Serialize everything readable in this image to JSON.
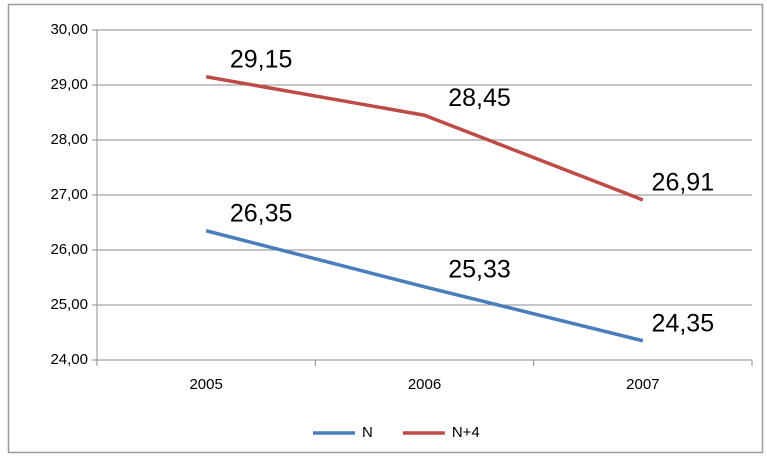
{
  "chart_data": {
    "type": "line",
    "categories": [
      "2005",
      "2006",
      "2007"
    ],
    "series": [
      {
        "name": "N",
        "color": "#4a7ebb",
        "values": [
          26.35,
          25.33,
          24.35
        ],
        "value_labels": [
          "26,35",
          "25,33",
          "24,35"
        ]
      },
      {
        "name": "N+4",
        "color": "#be4b48",
        "values": [
          29.15,
          28.45,
          26.91
        ],
        "value_labels": [
          "29,15",
          "28,45",
          "26,91"
        ]
      }
    ],
    "ylim": [
      24,
      30
    ],
    "yticks": [
      {
        "value": 24,
        "label": "24,00"
      },
      {
        "value": 25,
        "label": "25,00"
      },
      {
        "value": 26,
        "label": "26,00"
      },
      {
        "value": 27,
        "label": "27,00"
      },
      {
        "value": 28,
        "label": "28,00"
      },
      {
        "value": 29,
        "label": "29,00"
      },
      {
        "value": 30,
        "label": "30,00"
      }
    ],
    "grid": true,
    "legend": "bottom"
  }
}
